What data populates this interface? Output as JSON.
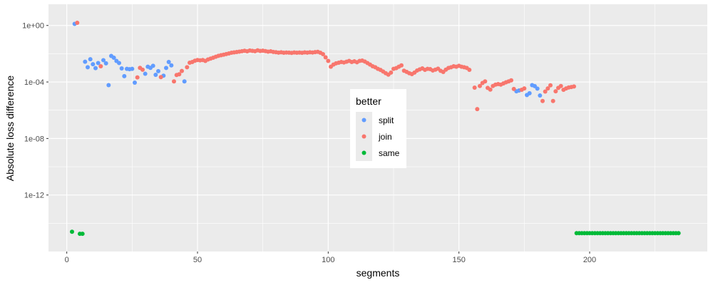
{
  "chart_data": {
    "type": "scatter",
    "title": "",
    "xlabel": "segments",
    "ylabel": "Absolute loss difference",
    "xlim": [
      -7,
      245
    ],
    "ylim_log10": [
      -16,
      1.5
    ],
    "y_scale": "log10",
    "grid": true,
    "legend_position": "inside-center",
    "legend_title": "better",
    "x_ticks": [
      {
        "value": 0,
        "label": "0"
      },
      {
        "value": 50,
        "label": "50"
      },
      {
        "value": 100,
        "label": "100"
      },
      {
        "value": 150,
        "label": "150"
      },
      {
        "value": 200,
        "label": "200"
      }
    ],
    "y_ticks": [
      {
        "value": 1,
        "label": "1e+00"
      },
      {
        "value": 0.0001,
        "label": "1e-04"
      },
      {
        "value": 1e-08,
        "label": "1e-08"
      },
      {
        "value": 1e-12,
        "label": "1e-12"
      }
    ],
    "colors": {
      "split": "#619CFF",
      "join": "#F8766D",
      "same": "#00BA38",
      "panel": "#EBEBEB",
      "grid": "#FFFFFF"
    },
    "series": [
      {
        "name": "split",
        "points": [
          [
            3,
            1.3
          ],
          [
            7,
            0.0027
          ],
          [
            8,
            0.0011
          ],
          [
            9,
            0.0041
          ],
          [
            10,
            0.0018
          ],
          [
            11,
            0.00095
          ],
          [
            12,
            0.0022
          ],
          [
            14,
            0.0035
          ],
          [
            15,
            0.0021
          ],
          [
            16,
            6e-05
          ],
          [
            17,
            0.007
          ],
          [
            18,
            0.0052
          ],
          [
            19,
            0.0031
          ],
          [
            20,
            0.0022
          ],
          [
            21,
            0.00092
          ],
          [
            22,
            0.00026
          ],
          [
            23,
            0.00085
          ],
          [
            24,
            0.0008
          ],
          [
            25,
            0.00085
          ],
          [
            26,
            9e-05
          ],
          [
            30,
            0.00038
          ],
          [
            31,
            0.0012
          ],
          [
            32,
            0.001
          ],
          [
            33,
            0.0014
          ],
          [
            34,
            0.00032
          ],
          [
            35,
            0.00058
          ],
          [
            37,
            0.00028
          ],
          [
            38,
            0.00098
          ],
          [
            39,
            0.0026
          ],
          [
            40,
            0.0015
          ],
          [
            45,
            0.00011
          ],
          [
            172,
            2.2e-05
          ],
          [
            173,
            2.5e-05
          ],
          [
            176,
            1.2e-05
          ],
          [
            177,
            1.6e-05
          ],
          [
            178,
            6e-05
          ],
          [
            179,
            5.1e-05
          ],
          [
            180,
            3.4e-05
          ],
          [
            181,
            1.1e-05
          ]
        ]
      },
      {
        "name": "join",
        "points": [
          [
            4,
            1.55
          ],
          [
            13,
            0.0013
          ],
          [
            27,
            0.00021
          ],
          [
            28,
            0.001
          ],
          [
            29,
            0.00074
          ],
          [
            36,
            0.00022
          ],
          [
            41,
            0.00011
          ],
          [
            42,
            0.00031
          ],
          [
            43,
            0.00035
          ],
          [
            44,
            0.0006
          ],
          [
            46,
            0.0011
          ],
          [
            47,
            0.0023
          ],
          [
            48,
            0.0026
          ],
          [
            49,
            0.0032
          ],
          [
            50,
            0.0036
          ],
          [
            51,
            0.0034
          ],
          [
            52,
            0.0036
          ],
          [
            53,
            0.0031
          ],
          [
            54,
            0.0039
          ],
          [
            55,
            0.0045
          ],
          [
            56,
            0.0052
          ],
          [
            57,
            0.0061
          ],
          [
            58,
            0.0071
          ],
          [
            59,
            0.0078
          ],
          [
            60,
            0.0086
          ],
          [
            61,
            0.0095
          ],
          [
            62,
            0.0105
          ],
          [
            63,
            0.0118
          ],
          [
            64,
            0.0125
          ],
          [
            65,
            0.0132
          ],
          [
            66,
            0.014
          ],
          [
            67,
            0.0151
          ],
          [
            68,
            0.0162
          ],
          [
            69,
            0.0148
          ],
          [
            70,
            0.017
          ],
          [
            71,
            0.016
          ],
          [
            72,
            0.015
          ],
          [
            73,
            0.0175
          ],
          [
            74,
            0.0158
          ],
          [
            75,
            0.0165
          ],
          [
            76,
            0.0152
          ],
          [
            77,
            0.014
          ],
          [
            78,
            0.0148
          ],
          [
            79,
            0.0135
          ],
          [
            80,
            0.0128
          ],
          [
            81,
            0.012
          ],
          [
            82,
            0.0126
          ],
          [
            83,
            0.0118
          ],
          [
            84,
            0.0122
          ],
          [
            85,
            0.012
          ],
          [
            86,
            0.0115
          ],
          [
            87,
            0.0123
          ],
          [
            88,
            0.0118
          ],
          [
            89,
            0.0121
          ],
          [
            90,
            0.0116
          ],
          [
            91,
            0.0124
          ],
          [
            92,
            0.0119
          ],
          [
            93,
            0.0126
          ],
          [
            94,
            0.0122
          ],
          [
            95,
            0.0131
          ],
          [
            96,
            0.0136
          ],
          [
            97,
            0.0118
          ],
          [
            98,
            0.0093
          ],
          [
            99,
            0.0055
          ],
          [
            100,
            0.0031
          ],
          [
            101,
            0.0012
          ],
          [
            102,
            0.0017
          ],
          [
            103,
            0.0021
          ],
          [
            104,
            0.0023
          ],
          [
            105,
            0.0026
          ],
          [
            106,
            0.0024
          ],
          [
            107,
            0.0027
          ],
          [
            108,
            0.0031
          ],
          [
            109,
            0.0026
          ],
          [
            110,
            0.0029
          ],
          [
            111,
            0.0025
          ],
          [
            112,
            0.0031
          ],
          [
            113,
            0.0033
          ],
          [
            114,
            0.0028
          ],
          [
            115,
            0.0022
          ],
          [
            116,
            0.0017
          ],
          [
            117,
            0.0013
          ],
          [
            118,
            0.0011
          ],
          [
            119,
            0.00085
          ],
          [
            120,
            0.00071
          ],
          [
            121,
            0.00055
          ],
          [
            122,
            0.00042
          ],
          [
            123,
            0.00033
          ],
          [
            124,
            0.00046
          ],
          [
            125,
            0.00085
          ],
          [
            126,
            0.00095
          ],
          [
            127,
            0.0012
          ],
          [
            128,
            0.0015
          ],
          [
            129,
            0.00063
          ],
          [
            130,
            0.00052
          ],
          [
            131,
            0.00042
          ],
          [
            132,
            0.00036
          ],
          [
            133,
            0.00046
          ],
          [
            134,
            0.00065
          ],
          [
            135,
            0.00078
          ],
          [
            136,
            0.00092
          ],
          [
            137,
            0.00072
          ],
          [
            138,
            0.00085
          ],
          [
            139,
            0.00081
          ],
          [
            140,
            0.00065
          ],
          [
            141,
            0.00075
          ],
          [
            142,
            0.00088
          ],
          [
            143,
            0.00062
          ],
          [
            144,
            0.00051
          ],
          [
            145,
            0.00075
          ],
          [
            146,
            0.00098
          ],
          [
            147,
            0.0011
          ],
          [
            148,
            0.0013
          ],
          [
            149,
            0.0012
          ],
          [
            150,
            0.0014
          ],
          [
            151,
            0.0012
          ],
          [
            152,
            0.0011
          ],
          [
            153,
            0.00098
          ],
          [
            154,
            0.00072
          ],
          [
            156,
            4e-05
          ],
          [
            157,
            1.2e-06
          ],
          [
            158,
            5.2e-05
          ],
          [
            159,
            8.5e-05
          ],
          [
            160,
            0.00011
          ],
          [
            161,
            3.8e-05
          ],
          [
            162,
            2.9e-05
          ],
          [
            163,
            5.2e-05
          ],
          [
            164,
            6.5e-05
          ],
          [
            165,
            7.1e-05
          ],
          [
            166,
            6.5e-05
          ],
          [
            167,
            7.9e-05
          ],
          [
            168,
            9.5e-05
          ],
          [
            169,
            0.00011
          ],
          [
            170,
            0.00013
          ],
          [
            171,
            3.2e-05
          ],
          [
            174,
            2.8e-05
          ],
          [
            175,
            3.5e-05
          ],
          [
            182,
            4.5e-06
          ],
          [
            183,
            2.1e-05
          ],
          [
            184,
            3.5e-05
          ],
          [
            185,
            5.8e-05
          ],
          [
            186,
            4.5e-06
          ],
          [
            187,
            2.2e-05
          ],
          [
            188,
            3.8e-05
          ],
          [
            189,
            5.2e-05
          ],
          [
            190,
            2.8e-05
          ],
          [
            191,
            3.5e-05
          ],
          [
            192,
            4.1e-05
          ],
          [
            193,
            4.4e-05
          ],
          [
            194,
            4.8e-05
          ]
        ]
      },
      {
        "name": "same",
        "points": [
          [
            2,
            2.5e-15
          ],
          [
            5,
            1.8e-15
          ],
          [
            6,
            1.8e-15
          ],
          [
            195,
            2e-15
          ],
          [
            196,
            2e-15
          ],
          [
            197,
            2e-15
          ],
          [
            198,
            2e-15
          ],
          [
            199,
            2e-15
          ],
          [
            200,
            2e-15
          ],
          [
            201,
            2e-15
          ],
          [
            202,
            2e-15
          ],
          [
            203,
            2e-15
          ],
          [
            204,
            2e-15
          ],
          [
            205,
            2e-15
          ],
          [
            206,
            2e-15
          ],
          [
            207,
            2e-15
          ],
          [
            208,
            2e-15
          ],
          [
            209,
            2e-15
          ],
          [
            210,
            2e-15
          ],
          [
            211,
            2e-15
          ],
          [
            212,
            2e-15
          ],
          [
            213,
            2e-15
          ],
          [
            214,
            2e-15
          ],
          [
            215,
            2e-15
          ],
          [
            216,
            2e-15
          ],
          [
            217,
            2e-15
          ],
          [
            218,
            2e-15
          ],
          [
            219,
            2e-15
          ],
          [
            220,
            2e-15
          ],
          [
            221,
            2e-15
          ],
          [
            222,
            2e-15
          ],
          [
            223,
            2e-15
          ],
          [
            224,
            2e-15
          ],
          [
            225,
            2e-15
          ],
          [
            226,
            2e-15
          ],
          [
            227,
            2e-15
          ],
          [
            228,
            2e-15
          ],
          [
            229,
            2e-15
          ],
          [
            230,
            2e-15
          ],
          [
            231,
            2e-15
          ],
          [
            232,
            2e-15
          ],
          [
            233,
            2e-15
          ],
          [
            234,
            2e-15
          ]
        ]
      }
    ]
  }
}
